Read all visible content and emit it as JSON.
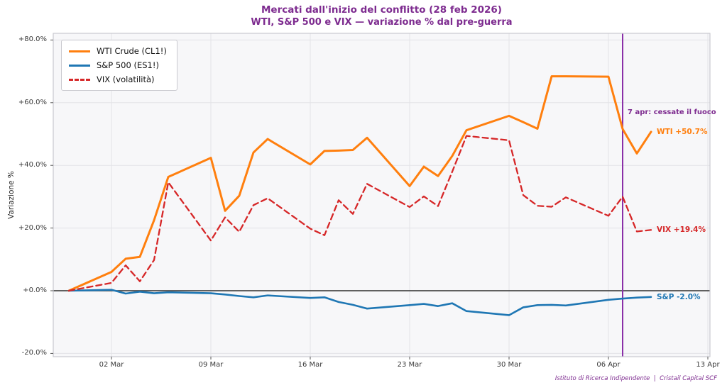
{
  "header": {
    "title_line1": "Mercati dall'inizio del conflitto (28 feb 2026)",
    "title_line2": "WTI, S&P 500 e VIX — variazione % dal pre-guerra"
  },
  "footer": {
    "source": "Istituto di Ricerca Indipendente  |  Cristail Capital SCF"
  },
  "colors": {
    "background": "#ffffff",
    "plot_background": "#f7f7f9",
    "grid": "#e3e3e7",
    "zero_line": "#4a4a4a",
    "spine": "#c9c9cf",
    "tick": "#555555",
    "accent_purple": "#7d2b8f",
    "event_line": "#8a2fa8",
    "wti_orange": "#ff7f0e",
    "sp_blue": "#1f77b4",
    "vix_red": "#d62728"
  },
  "chart_data": {
    "type": "line",
    "title": "Mercati dall'inizio del conflitto (28 feb 2026)",
    "subtitle": "WTI, S&P 500 e VIX — variazione % dal pre-guerra",
    "xlabel": "",
    "ylabel": "Variazione %",
    "ylim": [
      -20,
      80
    ],
    "grid": true,
    "legend_position": "upper-left",
    "dates": [
      "27 feb",
      "02 mar",
      "03 mar",
      "04 mar",
      "05 mar",
      "06 mar",
      "09 mar",
      "10 mar",
      "11 mar",
      "12 mar",
      "13 mar",
      "16 mar",
      "17 mar",
      "18 mar",
      "19 mar",
      "20 mar",
      "23 mar",
      "24 mar",
      "25 mar",
      "26 mar",
      "27 mar",
      "30 mar",
      "31 mar",
      "01 apr",
      "02 apr",
      "03 apr",
      "06 apr",
      "07 apr",
      "08 apr",
      "09 apr"
    ],
    "day_offsets": [
      0,
      3,
      4,
      5,
      6,
      7,
      10,
      11,
      12,
      13,
      14,
      17,
      18,
      19,
      20,
      21,
      24,
      25,
      26,
      27,
      28,
      31,
      32,
      33,
      34,
      35,
      38,
      39,
      40,
      41
    ],
    "series": [
      {
        "name": "WTI Crude (CL1!)",
        "color": "#ff7f0e",
        "style": "solid",
        "end_label": "WTI +50.7%",
        "values": [
          0,
          6.0,
          10.2,
          10.8,
          22.5,
          36.3,
          42.4,
          25.5,
          30.3,
          44.1,
          48.4,
          40.3,
          44.6,
          44.7,
          44.9,
          48.8,
          33.4,
          39.6,
          36.6,
          43.0,
          51.2,
          55.8,
          53.8,
          51.7,
          68.4,
          68.4,
          68.3,
          51.6,
          43.8,
          50.7
        ]
      },
      {
        "name": "S&P 500 (ES1!)",
        "color": "#1f77b4",
        "style": "solid",
        "end_label": "S&P -2.0%",
        "values": [
          0,
          0.3,
          -0.9,
          -0.3,
          -0.8,
          -0.5,
          -0.8,
          -1.2,
          -1.7,
          -2.1,
          -1.5,
          -2.3,
          -2.1,
          -3.6,
          -4.5,
          -5.7,
          -4.6,
          -4.2,
          -4.9,
          -4.0,
          -6.5,
          -7.8,
          -5.3,
          -4.6,
          -4.5,
          -4.7,
          -2.9,
          -2.5,
          -2.2,
          -2.0
        ]
      },
      {
        "name": "VIX (volatilità)",
        "color": "#d62728",
        "style": "dashed",
        "end_label": "VIX +19.4%",
        "values": [
          0,
          2.5,
          8.1,
          3.0,
          9.8,
          34.6,
          16.0,
          23.4,
          18.8,
          27.3,
          29.5,
          19.8,
          17.7,
          28.9,
          24.5,
          34.1,
          26.7,
          30.1,
          27.0,
          38.0,
          49.4,
          48.0,
          30.5,
          27.1,
          26.8,
          29.8,
          23.9,
          30.0,
          18.9,
          19.4
        ]
      }
    ],
    "xticks": [
      {
        "label": "02 Mar",
        "day": 3
      },
      {
        "label": "09 Mar",
        "day": 10
      },
      {
        "label": "16 Mar",
        "day": 17
      },
      {
        "label": "23 Mar",
        "day": 24
      },
      {
        "label": "30 Mar",
        "day": 31
      },
      {
        "label": "06 Apr",
        "day": 38
      },
      {
        "label": "13 Apr",
        "day": 45
      }
    ],
    "yticks": [
      {
        "label": "+80.0%",
        "value": 80
      },
      {
        "label": "+60.0%",
        "value": 60
      },
      {
        "label": "+40.0%",
        "value": 40
      },
      {
        "label": "+20.0%",
        "value": 20
      },
      {
        "label": "+0.0%",
        "value": 0
      },
      {
        "label": "-20.0%",
        "value": -20
      }
    ],
    "event_line": {
      "day": 39,
      "label": "7 apr: cessate il fuoco"
    }
  }
}
